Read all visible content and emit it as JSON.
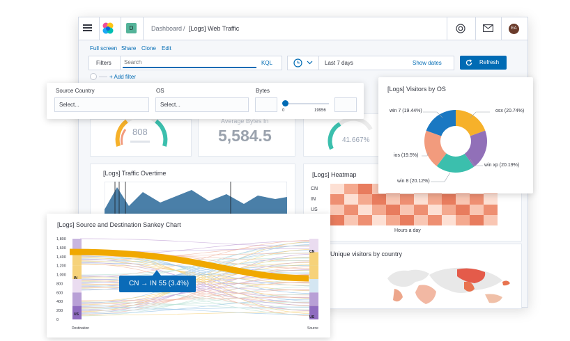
{
  "header": {
    "space_letter": "D",
    "breadcrumb_root": "Dashboard",
    "breadcrumb_sep": "/",
    "breadcrumb_current": "[Logs] Web Traffic",
    "avatar_initials": "EA"
  },
  "toolbar": {
    "actions": [
      "Full screen",
      "Share",
      "Clone",
      "Edit"
    ],
    "filters_label": "Filters",
    "search_placeholder": "Search",
    "kql_label": "KQL",
    "time_range": "Last 7 days",
    "show_dates": "Show dates",
    "refresh_label": "Refresh",
    "add_filter": "+ Add filter"
  },
  "controls": {
    "source_country_label": "Source Country",
    "source_country_placeholder": "Select...",
    "os_label": "OS",
    "os_placeholder": "Select...",
    "bytes_label": "Bytes",
    "bytes_min": "0",
    "bytes_max": "19956"
  },
  "metrics": {
    "gauge1_value": "808",
    "avg_bytes_label": "Average Bytes In",
    "avg_bytes_value": "5,584.5",
    "gauge3_value": "41.667%"
  },
  "traffic": {
    "title": "[Logs] Traffic Overtime"
  },
  "heatmap": {
    "title": "[Logs] Heatmap",
    "rows": [
      "CN",
      "IN",
      "US"
    ],
    "xlabel": "Hours a day"
  },
  "map": {
    "title": "Unique visitors by country"
  },
  "os_chart": {
    "title": "[Logs] Visitors by OS",
    "colors": {
      "win7": "#f6b12a",
      "osx": "#9170b8",
      "winxp": "#3bbfad",
      "win8": "#f29b7d",
      "ios": "#1a78c2"
    }
  },
  "chart_data": [
    {
      "type": "pie",
      "title": "[Logs] Visitors by OS",
      "donut": true,
      "categories": [
        "win 7",
        "osx",
        "win xp",
        "win 8",
        "ios"
      ],
      "values": [
        19.44,
        20.74,
        20.19,
        20.12,
        19.5
      ],
      "labels": [
        "win 7 (19.44%)",
        "osx (20.74%)",
        "win xp (20.19%)",
        "win 8 (20.12%)",
        "ios (19.5%)"
      ]
    },
    {
      "type": "sankey",
      "title": "[Logs] Source and Destination Sankey Chart",
      "yticks": [
        "1,800",
        "1,600",
        "1,400",
        "1,200",
        "1,000",
        "800",
        "600",
        "400",
        "200",
        "0"
      ],
      "left_label": "Destination",
      "right_label": "Source",
      "left_nodes": [
        "IN",
        "US"
      ],
      "right_nodes": [
        "CN",
        "US"
      ],
      "highlight": {
        "from": "CN",
        "to": "IN",
        "value": 55,
        "percent": 3.4
      },
      "tooltip": "CN → IN 55 (3.4%)"
    }
  ]
}
